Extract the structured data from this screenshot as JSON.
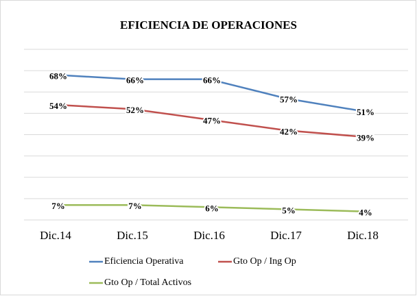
{
  "chart_data": {
    "type": "line",
    "title": "EFICIENCIA DE OPERACIONES",
    "categories": [
      "Dic.14",
      "Dic.15",
      "Dic.16",
      "Dic.17",
      "Dic.18"
    ],
    "series": [
      {
        "name": "Eficiencia Operativa",
        "color": "#4f81bd",
        "values": [
          68,
          66,
          66,
          57,
          51
        ],
        "value_labels": [
          "68%",
          "66%",
          "66%",
          "57%",
          "51%"
        ]
      },
      {
        "name": "Gto Op / Ing Op",
        "color": "#c0504d",
        "values": [
          54,
          52,
          47,
          42,
          39
        ],
        "value_labels": [
          "54%",
          "52%",
          "47%",
          "42%",
          "39%"
        ]
      },
      {
        "name": "Gto Op / Total Activos",
        "color": "#9bbb59",
        "values": [
          7,
          7,
          6,
          5,
          4
        ],
        "value_labels": [
          "7%",
          "7%",
          "6%",
          "5%",
          "4%"
        ]
      }
    ],
    "ylim": [
      0,
      80
    ],
    "yticks": [
      0,
      10,
      20,
      30,
      40,
      50,
      60,
      70,
      80
    ],
    "grid": true
  }
}
